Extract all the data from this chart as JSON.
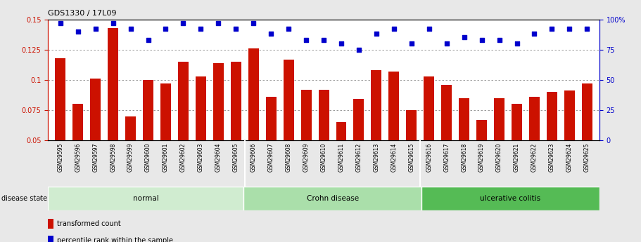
{
  "title": "GDS1330 / 17L09",
  "samples": [
    "GSM29595",
    "GSM29596",
    "GSM29597",
    "GSM29598",
    "GSM29599",
    "GSM29600",
    "GSM29601",
    "GSM29602",
    "GSM29603",
    "GSM29604",
    "GSM29605",
    "GSM29606",
    "GSM29607",
    "GSM29608",
    "GSM29609",
    "GSM29610",
    "GSM29611",
    "GSM29612",
    "GSM29613",
    "GSM29614",
    "GSM29615",
    "GSM29616",
    "GSM29617",
    "GSM29618",
    "GSM29619",
    "GSM29620",
    "GSM29621",
    "GSM29622",
    "GSM29623",
    "GSM29624",
    "GSM29625"
  ],
  "bar_values": [
    0.118,
    0.08,
    0.101,
    0.143,
    0.07,
    0.1,
    0.097,
    0.115,
    0.103,
    0.114,
    0.115,
    0.126,
    0.086,
    0.117,
    0.092,
    0.092,
    0.065,
    0.084,
    0.108,
    0.107,
    0.075,
    0.103,
    0.096,
    0.085,
    0.067,
    0.085,
    0.08,
    0.086,
    0.09,
    0.091,
    0.097
  ],
  "percentile_values": [
    97,
    90,
    92,
    97,
    92,
    83,
    92,
    97,
    92,
    97,
    92,
    97,
    88,
    92,
    83,
    83,
    80,
    75,
    88,
    92,
    80,
    92,
    80,
    85,
    83,
    83,
    80,
    88,
    92,
    92,
    92
  ],
  "bar_color": "#cc1100",
  "dot_color": "#0000cc",
  "ylim_left": [
    0.05,
    0.15
  ],
  "ylim_right": [
    0,
    100
  ],
  "yticks_left": [
    0.05,
    0.075,
    0.1,
    0.125,
    0.15
  ],
  "yticks_right": [
    0,
    25,
    50,
    75,
    100
  ],
  "group_starts": [
    0,
    11,
    21
  ],
  "group_ends": [
    11,
    21,
    31
  ],
  "group_labels": [
    "normal",
    "Crohn disease",
    "ulcerative colitis"
  ],
  "group_colors": [
    "#d0ecd0",
    "#aadfaa",
    "#55bb55"
  ],
  "xtick_bg_color": "#c8c8c8",
  "fig_bg_color": "#e8e8e8",
  "plot_bg_color": "#ffffff",
  "legend_bar_label": "transformed count",
  "legend_dot_label": "percentile rank within the sample",
  "dotted_grid_color": "#888888"
}
